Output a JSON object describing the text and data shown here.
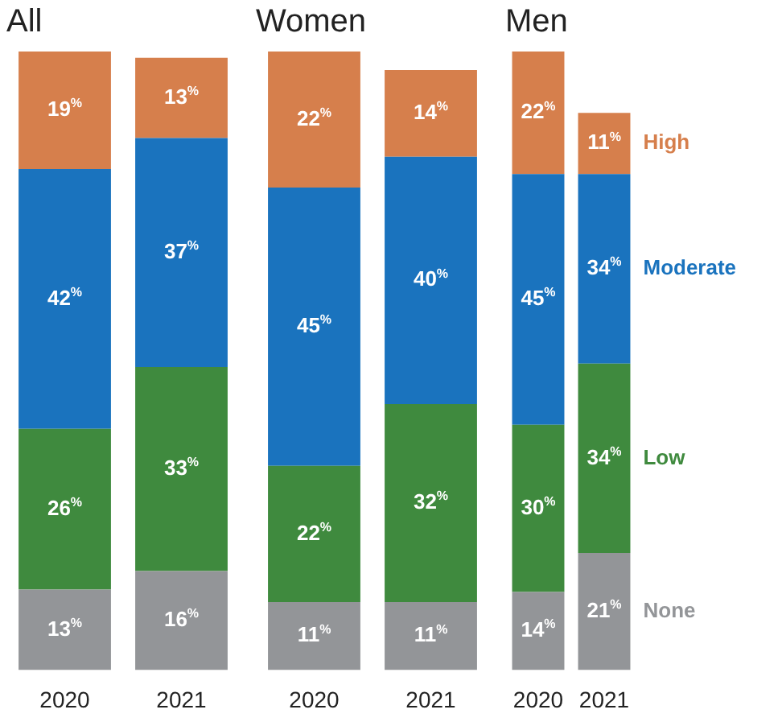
{
  "chart_data": [
    {
      "type": "bar",
      "title": "All",
      "categories": [
        "2020",
        "2021"
      ],
      "stacked": true,
      "tick_labels": "x",
      "series": [
        {
          "color": "#939598",
          "values": [
            13,
            16
          ],
          "value_labels": [
            "13$^{%}$",
            "16$^{%}$"
          ]
        },
        {
          "color": "#3f8a3e",
          "values": [
            26,
            33
          ],
          "value_labels": [
            "26$^{%}$",
            "33$^{%}$"
          ]
        },
        {
          "color": "#1a73be",
          "values": [
            42,
            37
          ],
          "value_labels": [
            "42$^{%}$",
            "37$^{%}$"
          ]
        },
        {
          "color": "#d67f4c",
          "values": [
            19,
            13
          ],
          "value_labels": [
            "19$^{%}$",
            "13$^{%}$"
          ]
        }
      ]
    },
    {
      "type": "bar",
      "title": "Women",
      "categories": [
        "2020",
        "2021"
      ],
      "stacked": true,
      "tick_labels": "x",
      "series": [
        {
          "color": "#939598",
          "values": [
            11,
            11
          ],
          "value_labels": [
            "11$^{%}$",
            "11$^{%}$"
          ]
        },
        {
          "color": "#3f8a3e",
          "values": [
            22,
            32
          ],
          "value_labels": [
            "22$^{%}$",
            "32$^{%}$"
          ]
        },
        {
          "color": "#1a73be",
          "values": [
            45,
            40
          ],
          "value_labels": [
            "45$^{%}$",
            "40$^{%}$"
          ]
        },
        {
          "color": "#d67f4c",
          "values": [
            22,
            14
          ],
          "value_labels": [
            "22$^{%}$",
            "14$^{%}$"
          ]
        }
      ]
    },
    {
      "type": "bar",
      "title": "Men",
      "categories": [
        "2020",
        "2021"
      ],
      "stacked": true,
      "tick_labels": "x",
      "series": [
        {
          "name": "None",
          "color": "#939598",
          "values": [
            14,
            21
          ],
          "value_labels": [
            "14$^{%}$",
            "21$^{%}$"
          ]
        },
        {
          "name": "Low",
          "color": "#3f8a3e",
          "values": [
            30,
            34
          ],
          "value_labels": [
            "30$^{%}$",
            "34$^{%}$"
          ]
        },
        {
          "name": "Moderate",
          "color": "#1a73be",
          "values": [
            45,
            34
          ],
          "value_labels": [
            "45$^{%}$",
            "34$^{%}$"
          ]
        },
        {
          "name": "High",
          "color": "#d67f4c",
          "values": [
            22,
            11
          ],
          "value_labels": [
            "22$^{%}$",
            "11$^{%}$"
          ]
        }
      ]
    }
  ]
}
